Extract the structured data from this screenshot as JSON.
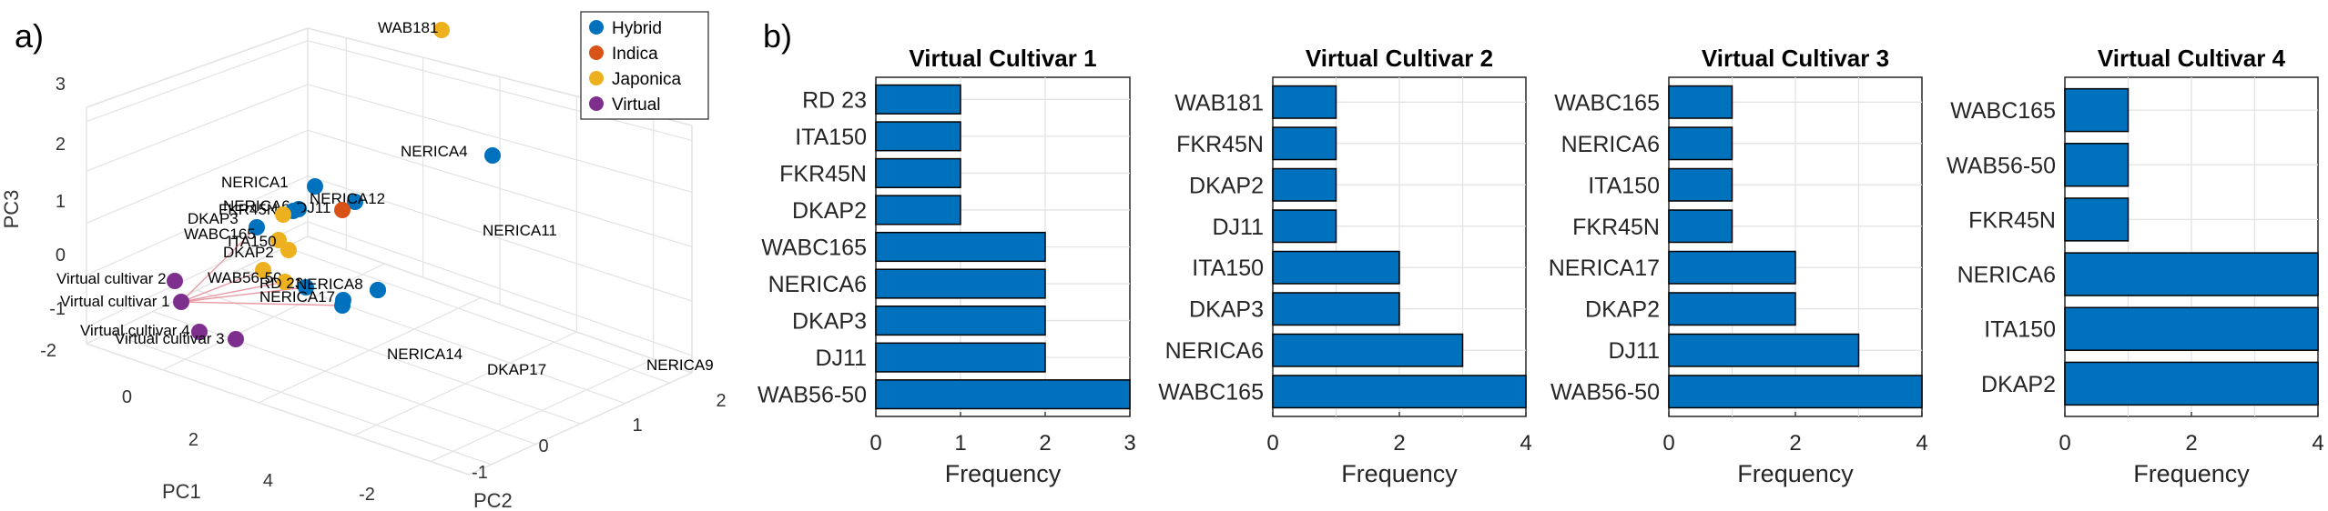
{
  "panel_labels": {
    "a": "a)",
    "b": "b)"
  },
  "colors": {
    "hybrid": "#0072BD",
    "indica": "#D95319",
    "japonica": "#EDB120",
    "virtual": "#7E2F8E",
    "bar": "#0072BD",
    "link": "#e89aa6",
    "grid": "#e3e3e3",
    "axis": "#262626"
  },
  "chart_data": [
    {
      "type": "scatter",
      "subtype": "3d-pca",
      "xlabel": "PC1",
      "ylabel": "PC2",
      "zlabel": "PC3",
      "pc1_ticks": [
        "-2",
        "0",
        "2",
        "4"
      ],
      "pc2_ticks": [
        "-2",
        "-1",
        "0",
        "1",
        "2"
      ],
      "pc3_ticks": [
        "-1",
        "0",
        "1",
        "2",
        "3"
      ],
      "legend": {
        "position": "top-right",
        "entries": [
          {
            "name": "Hybrid",
            "group": "hybrid"
          },
          {
            "name": "Indica",
            "group": "indica"
          },
          {
            "name": "Japonica",
            "group": "japonica"
          },
          {
            "name": "Virtual",
            "group": "virtual"
          }
        ]
      },
      "points": [
        {
          "label": "WAB181",
          "group": "japonica"
        },
        {
          "label": "NERICA4",
          "group": "hybrid"
        },
        {
          "label": "NERICA1",
          "group": "hybrid"
        },
        {
          "label": "NERICA12",
          "group": "hybrid"
        },
        {
          "label": "NERICA6",
          "group": "hybrid"
        },
        {
          "label": "DJ11",
          "group": "indica"
        },
        {
          "label": "FKR45N",
          "group": "hybrid"
        },
        {
          "label": "DKAP3",
          "group": "japonica"
        },
        {
          "label": "WABC165",
          "group": "hybrid"
        },
        {
          "label": "ITA150",
          "group": "japonica"
        },
        {
          "label": "DKAP2",
          "group": "japonica"
        },
        {
          "label": "WAB56-50",
          "group": "japonica"
        },
        {
          "label": "RD 23",
          "group": "japonica"
        },
        {
          "label": "NERICA8",
          "group": "hybrid"
        },
        {
          "label": "NERICA17",
          "group": "hybrid"
        },
        {
          "label": "NERICA11",
          "group": "hybrid"
        },
        {
          "label": "NERICA14",
          "group": "hybrid"
        },
        {
          "label": "DKAP17",
          "group": "hybrid"
        },
        {
          "label": "NERICA9",
          "group": "hybrid"
        },
        {
          "label": "Virtual cultivar 2",
          "group": "virtual"
        },
        {
          "label": "Virtual cultivar 1",
          "group": "virtual"
        },
        {
          "label": "Virtual cultivar 4",
          "group": "virtual"
        },
        {
          "label": "Virtual cultivar 3",
          "group": "virtual"
        }
      ]
    },
    {
      "type": "bar",
      "orientation": "horizontal",
      "title": "Virtual Cultivar 1",
      "xlabel": "Frequency",
      "xlim": [
        0,
        3
      ],
      "xticks": [
        0,
        1,
        2,
        3
      ],
      "categories": [
        "RD 23",
        "ITA150",
        "FKR45N",
        "DKAP2",
        "WABC165",
        "NERICA6",
        "DKAP3",
        "DJ11",
        "WAB56-50"
      ],
      "values": [
        1,
        1,
        1,
        1,
        2,
        2,
        2,
        2,
        3
      ]
    },
    {
      "type": "bar",
      "orientation": "horizontal",
      "title": "Virtual Cultivar 2",
      "xlabel": "Frequency",
      "xlim": [
        0,
        4
      ],
      "xticks": [
        0,
        2,
        4
      ],
      "categories": [
        "WAB181",
        "FKR45N",
        "DKAP2",
        "DJ11",
        "ITA150",
        "DKAP3",
        "NERICA6",
        "WABC165"
      ],
      "values": [
        1,
        1,
        1,
        1,
        2,
        2,
        3,
        4
      ]
    },
    {
      "type": "bar",
      "orientation": "horizontal",
      "title": "Virtual Cultivar 3",
      "xlabel": "Frequency",
      "xlim": [
        0,
        4
      ],
      "xticks": [
        0,
        2,
        4
      ],
      "categories": [
        "WABC165",
        "NERICA6",
        "ITA150",
        "FKR45N",
        "NERICA17",
        "DKAP2",
        "DJ11",
        "WAB56-50"
      ],
      "values": [
        1,
        1,
        1,
        1,
        2,
        2,
        3,
        4
      ]
    },
    {
      "type": "bar",
      "orientation": "horizontal",
      "title": "Virtual Cultivar 4",
      "xlabel": "Frequency",
      "xlim": [
        0,
        4
      ],
      "xticks": [
        0,
        2,
        4
      ],
      "categories": [
        "WABC165",
        "WAB56-50",
        "FKR45N",
        "NERICA6",
        "ITA150",
        "DKAP2"
      ],
      "values": [
        1,
        1,
        1,
        4,
        4,
        4
      ]
    }
  ]
}
